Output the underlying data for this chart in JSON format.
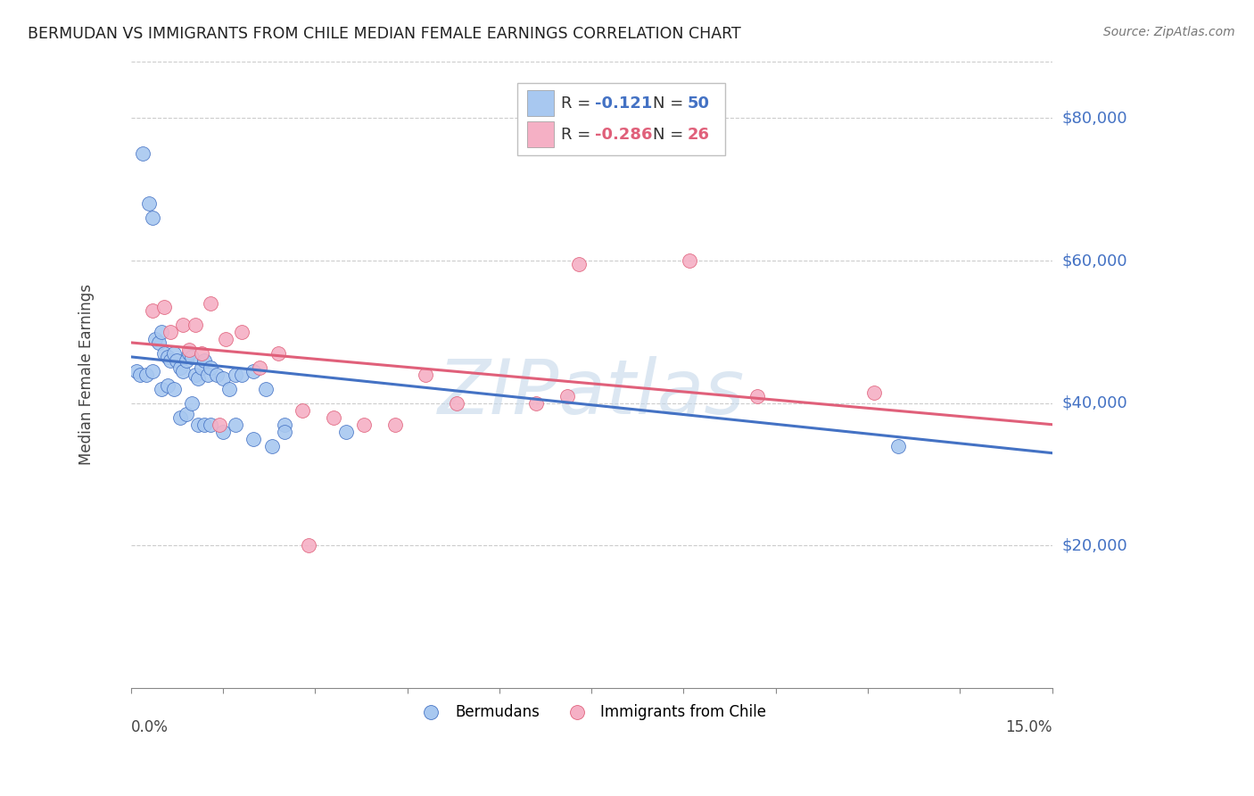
{
  "title": "BERMUDAN VS IMMIGRANTS FROM CHILE MEDIAN FEMALE EARNINGS CORRELATION CHART",
  "source": "Source: ZipAtlas.com",
  "ylabel": "Median Female Earnings",
  "ytick_labels": [
    "$20,000",
    "$40,000",
    "$60,000",
    "$80,000"
  ],
  "ytick_values": [
    20000,
    40000,
    60000,
    80000
  ],
  "xlim": [
    0.0,
    15.0
  ],
  "ylim": [
    0,
    88000
  ],
  "blue_scatter_color": "#a8c8f0",
  "blue_line_color": "#4472c4",
  "blue_edge_color": "#4472c4",
  "pink_scatter_color": "#f5b0c5",
  "pink_line_color": "#e0607a",
  "pink_edge_color": "#e0607a",
  "grid_color": "#cccccc",
  "axis_color": "#888888",
  "watermark_text": "ZIPatlas",
  "watermark_color": "#c5d8ea",
  "blue_x": [
    0.2,
    0.3,
    0.35,
    0.4,
    0.45,
    0.5,
    0.55,
    0.6,
    0.65,
    0.7,
    0.75,
    0.8,
    0.85,
    0.9,
    0.95,
    1.0,
    1.05,
    1.1,
    1.15,
    1.2,
    1.25,
    1.3,
    1.4,
    1.5,
    1.6,
    1.7,
    1.8,
    2.0,
    2.2,
    2.5,
    0.1,
    0.15,
    0.25,
    0.35,
    0.5,
    0.6,
    0.7,
    0.8,
    0.9,
    1.0,
    1.1,
    1.2,
    1.3,
    1.5,
    1.7,
    2.0,
    2.3,
    2.5,
    12.5,
    3.5
  ],
  "blue_y": [
    75000,
    68000,
    66000,
    49000,
    48500,
    50000,
    47000,
    46500,
    46000,
    47000,
    46000,
    45000,
    44500,
    46000,
    47000,
    46500,
    44000,
    43500,
    45000,
    46000,
    44000,
    45000,
    44000,
    43500,
    42000,
    44000,
    44000,
    44500,
    42000,
    37000,
    44500,
    44000,
    44000,
    44500,
    42000,
    42500,
    42000,
    38000,
    38500,
    40000,
    37000,
    37000,
    37000,
    36000,
    37000,
    35000,
    34000,
    36000,
    34000,
    36000
  ],
  "pink_x": [
    0.35,
    0.55,
    0.85,
    1.05,
    1.3,
    1.55,
    1.8,
    2.1,
    2.4,
    2.8,
    3.3,
    3.8,
    4.3,
    4.8,
    5.3,
    6.6,
    7.1,
    7.3,
    9.1,
    12.1,
    0.65,
    0.95,
    1.15,
    1.45,
    2.9,
    10.2
  ],
  "pink_y": [
    53000,
    53500,
    51000,
    51000,
    54000,
    49000,
    50000,
    45000,
    47000,
    39000,
    38000,
    37000,
    37000,
    44000,
    40000,
    40000,
    41000,
    59500,
    60000,
    41500,
    50000,
    47500,
    47000,
    37000,
    20000,
    41000
  ],
  "blue_trend_x0": 0.0,
  "blue_trend_y0": 46500,
  "blue_trend_x1": 15.0,
  "blue_trend_y1": 33000,
  "pink_trend_x0": 0.0,
  "pink_trend_y0": 48500,
  "pink_trend_x1": 15.0,
  "pink_trend_y1": 37000
}
